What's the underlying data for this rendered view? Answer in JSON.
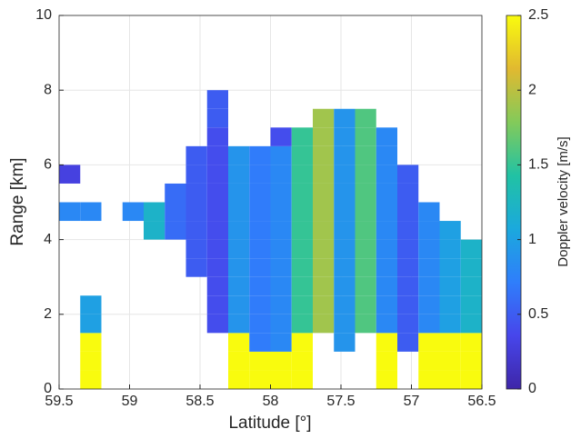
{
  "chart_data": {
    "type": "heatmap",
    "xlabel": "Latitude [°]",
    "ylabel": "Range [km]",
    "colorbar_label": "Doppler velocity [m/s]",
    "xlim": [
      59.5,
      56.5
    ],
    "xticks": [
      59.5,
      59,
      58.5,
      58,
      57.5,
      57,
      56.5
    ],
    "ylim": [
      0,
      10
    ],
    "yticks": [
      0,
      2,
      4,
      6,
      8,
      10
    ],
    "clim": [
      0,
      2.5
    ],
    "cticks": [
      0,
      0.5,
      1,
      1.5,
      2,
      2.5
    ],
    "colormap": [
      "#3e26a8",
      "#4746eb",
      "#2f7efb",
      "#1ba9dd",
      "#21c2a4",
      "#83ca5a",
      "#e1b930",
      "#f9fb0e"
    ],
    "grid": true,
    "x_edges": [
      59.5,
      59.35,
      59.2,
      59.05,
      58.9,
      58.75,
      58.6,
      58.45,
      58.3,
      58.15,
      58.0,
      57.85,
      57.7,
      57.55,
      57.4,
      57.25,
      57.1,
      56.95,
      56.8,
      56.65,
      56.5
    ],
    "y_edges": [
      0,
      0.5,
      1,
      1.5,
      2,
      2.5,
      3,
      3.5,
      4,
      4.5,
      5,
      5.5,
      6,
      6.5,
      7,
      7.5,
      8
    ],
    "z": [
      [
        null,
        2.5,
        null,
        null,
        null,
        null,
        null,
        null,
        2.5,
        2.5,
        2.5,
        2.5,
        null,
        null,
        null,
        2.5,
        null,
        2.5,
        2.5,
        2.5
      ],
      [
        null,
        2.5,
        null,
        null,
        null,
        null,
        null,
        null,
        2.5,
        2.5,
        2.5,
        2.5,
        null,
        null,
        null,
        2.5,
        null,
        2.5,
        2.5,
        2.5
      ],
      [
        null,
        2.5,
        null,
        null,
        null,
        null,
        null,
        null,
        2.5,
        0.7,
        0.8,
        2.5,
        null,
        0.9,
        null,
        2.5,
        0.5,
        2.5,
        2.5,
        2.5
      ],
      [
        null,
        1.0,
        null,
        null,
        null,
        null,
        null,
        0.4,
        0.9,
        0.7,
        0.8,
        1.5,
        1.9,
        0.9,
        1.6,
        0.8,
        0.5,
        0.8,
        1.0,
        1.2
      ],
      [
        null,
        1.0,
        null,
        null,
        null,
        null,
        null,
        0.4,
        0.9,
        0.7,
        0.8,
        1.5,
        1.9,
        0.9,
        1.6,
        0.8,
        0.5,
        0.8,
        1.0,
        1.2
      ],
      [
        null,
        null,
        null,
        null,
        null,
        null,
        null,
        0.4,
        0.9,
        0.7,
        0.8,
        1.5,
        1.9,
        0.9,
        1.6,
        0.8,
        0.5,
        0.8,
        1.0,
        1.2
      ],
      [
        null,
        null,
        null,
        null,
        null,
        null,
        0.5,
        0.4,
        0.9,
        0.7,
        0.8,
        1.5,
        1.9,
        0.9,
        1.6,
        0.8,
        0.5,
        0.8,
        1.0,
        1.2
      ],
      [
        null,
        null,
        null,
        null,
        null,
        null,
        0.5,
        0.4,
        0.9,
        0.7,
        0.8,
        1.5,
        1.9,
        0.9,
        1.6,
        0.8,
        0.5,
        0.8,
        1.0,
        1.2
      ],
      [
        null,
        null,
        null,
        null,
        1.2,
        0.6,
        0.5,
        0.4,
        0.9,
        0.7,
        0.8,
        1.5,
        1.9,
        0.9,
        1.6,
        0.8,
        0.5,
        0.8,
        1.0,
        null
      ],
      [
        0.8,
        0.8,
        null,
        0.8,
        1.2,
        0.6,
        0.5,
        0.4,
        0.9,
        0.7,
        0.8,
        1.5,
        1.9,
        0.9,
        1.6,
        0.8,
        0.5,
        0.8,
        null,
        null
      ],
      [
        null,
        null,
        null,
        null,
        null,
        0.6,
        0.5,
        0.4,
        0.9,
        0.7,
        0.8,
        1.5,
        1.9,
        0.9,
        1.6,
        0.8,
        0.5,
        null,
        null,
        null
      ],
      [
        0.3,
        null,
        null,
        null,
        null,
        null,
        0.5,
        0.4,
        0.9,
        0.7,
        0.8,
        1.5,
        1.9,
        0.9,
        1.6,
        0.8,
        0.5,
        null,
        null,
        null
      ],
      [
        null,
        null,
        null,
        null,
        null,
        null,
        0.5,
        0.4,
        0.9,
        0.7,
        0.8,
        1.5,
        1.9,
        0.9,
        1.6,
        0.8,
        null,
        null,
        null,
        null
      ],
      [
        null,
        null,
        null,
        null,
        null,
        null,
        null,
        0.4,
        null,
        null,
        0.4,
        1.5,
        1.9,
        0.9,
        1.6,
        0.8,
        null,
        null,
        null,
        null
      ],
      [
        null,
        null,
        null,
        null,
        null,
        null,
        null,
        0.5,
        null,
        null,
        null,
        null,
        1.9,
        0.9,
        1.6,
        null,
        null,
        null,
        null,
        null
      ],
      [
        null,
        null,
        null,
        null,
        null,
        null,
        null,
        0.5,
        null,
        null,
        null,
        null,
        null,
        null,
        null,
        null,
        null,
        null,
        null,
        null
      ]
    ]
  }
}
